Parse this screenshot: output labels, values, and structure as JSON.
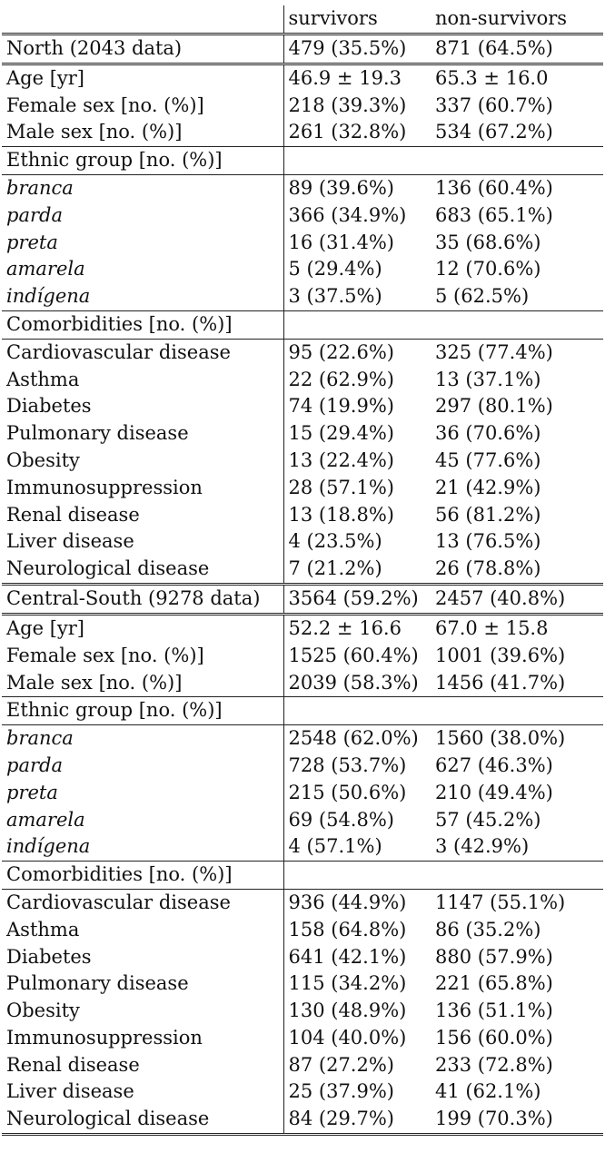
{
  "header": {
    "col1": "survivors",
    "col2": "non-survivors"
  },
  "regions": [
    {
      "name": "North (2043 data)",
      "survivors": "479 (35.5%)",
      "non_survivors": "871 (64.5%)",
      "rows": [
        {
          "label": "Age [yr]",
          "s": "46.9 ± 19.3",
          "n": "65.3 ± 16.0"
        },
        {
          "label": "Female sex [no. (%)]",
          "s": "218 (39.3%)",
          "n": "337 (60.7%)"
        },
        {
          "label": "Male sex [no. (%)]",
          "s": "261 (32.8%)",
          "n": "534 (67.2%)"
        }
      ],
      "ethnic_title": "Ethnic group [no. (%)]",
      "ethnic": [
        {
          "label": "branca",
          "s": "89 (39.6%)",
          "n": "136 (60.4%)"
        },
        {
          "label": "parda",
          "s": "366 (34.9%)",
          "n": "683 (65.1%)"
        },
        {
          "label": "preta",
          "s": "16 (31.4%)",
          "n": "35 (68.6%)"
        },
        {
          "label": "amarela",
          "s": "5 (29.4%)",
          "n": "12 (70.6%)"
        },
        {
          "label": "indígena",
          "s": "3 (37.5%)",
          "n": "5 (62.5%)"
        }
      ],
      "comorb_title": "Comorbidities [no. (%)]",
      "comorb": [
        {
          "label": "Cardiovascular disease",
          "s": "95 (22.6%)",
          "n": "325 (77.4%)"
        },
        {
          "label": "Asthma",
          "s": "22 (62.9%)",
          "n": "13 (37.1%)"
        },
        {
          "label": "Diabetes",
          "s": "74 (19.9%)",
          "n": "297 (80.1%)"
        },
        {
          "label": "Pulmonary disease",
          "s": "15 (29.4%)",
          "n": "36 (70.6%)"
        },
        {
          "label": "Obesity",
          "s": "13 (22.4%)",
          "n": "45 (77.6%)"
        },
        {
          "label": "Immunosuppression",
          "s": "28 (57.1%)",
          "n": "21 (42.9%)"
        },
        {
          "label": "Renal disease",
          "s": "13 (18.8%)",
          "n": "56 (81.2%)"
        },
        {
          "label": "Liver disease",
          "s": "4 (23.5%)",
          "n": "13 (76.5%)"
        },
        {
          "label": "Neurological disease",
          "s": "7 (21.2%)",
          "n": "26 (78.8%)"
        }
      ]
    },
    {
      "name": "Central-South (9278 data)",
      "survivors": "3564 (59.2%)",
      "non_survivors": "2457 (40.8%)",
      "rows": [
        {
          "label": "Age [yr]",
          "s": "52.2 ± 16.6",
          "n": "67.0 ± 15.8"
        },
        {
          "label": "Female sex [no. (%)]",
          "s": "1525 (60.4%)",
          "n": "1001 (39.6%)"
        },
        {
          "label": "Male sex [no. (%)]",
          "s": "2039 (58.3%)",
          "n": "1456 (41.7%)"
        }
      ],
      "ethnic_title": "Ethnic group [no. (%)]",
      "ethnic": [
        {
          "label": "branca",
          "s": "2548 (62.0%)",
          "n": "1560 (38.0%)"
        },
        {
          "label": "parda",
          "s": "728 (53.7%)",
          "n": "627 (46.3%)"
        },
        {
          "label": "preta",
          "s": "215 (50.6%)",
          "n": "210 (49.4%)"
        },
        {
          "label": "amarela",
          "s": "69 (54.8%)",
          "n": "57 (45.2%)"
        },
        {
          "label": "indígena",
          "s": "4 (57.1%)",
          "n": "3 (42.9%)"
        }
      ],
      "comorb_title": "Comorbidities [no. (%)]",
      "comorb": [
        {
          "label": "Cardiovascular disease",
          "s": "936 (44.9%)",
          "n": "1147 (55.1%)"
        },
        {
          "label": "Asthma",
          "s": "158 (64.8%)",
          "n": "86 (35.2%)"
        },
        {
          "label": "Diabetes",
          "s": "641 (42.1%)",
          "n": "880 (57.9%)"
        },
        {
          "label": "Pulmonary disease",
          "s": "115 (34.2%)",
          "n": "221 (65.8%)"
        },
        {
          "label": "Obesity",
          "s": "130 (48.9%)",
          "n": "136 (51.1%)"
        },
        {
          "label": "Immunosuppression",
          "s": "104 (40.0%)",
          "n": "156 (60.0%)"
        },
        {
          "label": "Renal disease",
          "s": "87 (27.2%)",
          "n": "233 (72.8%)"
        },
        {
          "label": "Liver disease",
          "s": "25 (37.9%)",
          "n": "41 (62.1%)"
        },
        {
          "label": "Neurological disease",
          "s": "84 (29.7%)",
          "n": "199 (70.3%)"
        }
      ]
    }
  ]
}
